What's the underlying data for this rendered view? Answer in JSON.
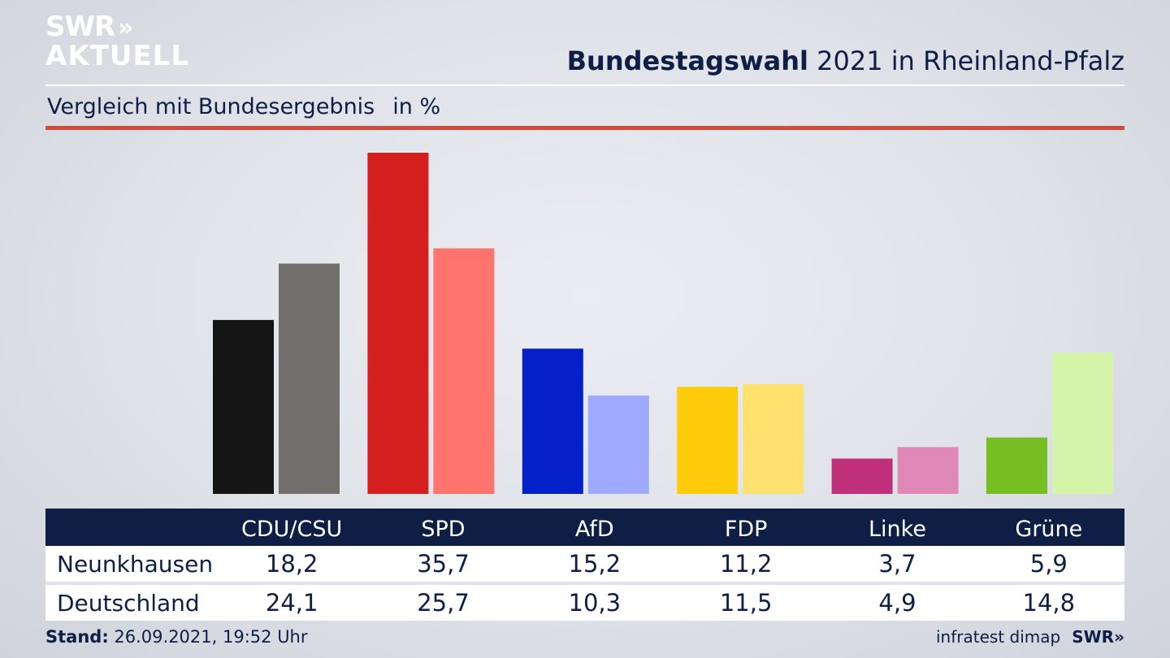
{
  "logo": {
    "line1": "SWR",
    "line1_arrows": "»",
    "line2": "AKTUELL"
  },
  "header": {
    "title_bold": "Bundestagswahl",
    "title_rest": "2021 in Rheinland-Pfalz"
  },
  "subtitle": {
    "text": "Vergleich mit Bundesergebnis",
    "unit": "in %"
  },
  "colors": {
    "accent_red_rule": "#d24a3a",
    "navy": "#0f1e45",
    "CDU/CSU": [
      "#151515",
      "#716f6c"
    ],
    "SPD": [
      "#d51f1f",
      "#ff746c"
    ],
    "AfD": [
      "#0320c9",
      "#9eaaff"
    ],
    "FDP": [
      "#ffcb0a",
      "#ffe170"
    ],
    "Linke": [
      "#c0307a",
      "#e088b8"
    ],
    "Grüne": [
      "#76be22",
      "#d4f5a9"
    ]
  },
  "chart_data": {
    "type": "bar",
    "categories": [
      "CDU/CSU",
      "SPD",
      "AfD",
      "FDP",
      "Linke",
      "Grüne"
    ],
    "series": [
      {
        "name": "Neunkhausen",
        "values": [
          18.2,
          35.7,
          15.2,
          11.2,
          3.7,
          5.9
        ]
      },
      {
        "name": "Deutschland",
        "values": [
          24.1,
          25.7,
          10.3,
          11.5,
          4.9,
          14.8
        ]
      }
    ],
    "title": "Bundestagswahl 2021 in Rheinland-Pfalz",
    "subtitle": "Vergleich mit Bundesergebnis in %",
    "ylim": [
      0,
      36
    ],
    "grid": false,
    "legend": "table below chart"
  },
  "table": {
    "headers": [
      "CDU/CSU",
      "SPD",
      "AfD",
      "FDP",
      "Linke",
      "Grüne"
    ],
    "rows": [
      {
        "label": "Neunkhausen",
        "values": [
          "18,2",
          "35,7",
          "15,2",
          "11,2",
          "3,7",
          "5,9"
        ]
      },
      {
        "label": "Deutschland",
        "values": [
          "24,1",
          "25,7",
          "10,3",
          "11,5",
          "4,9",
          "14,8"
        ]
      }
    ]
  },
  "footer": {
    "stand_label": "Stand:",
    "stand_value": "26.09.2021, 19:52 Uhr",
    "source": "infratest dimap",
    "brand": "SWR»"
  }
}
